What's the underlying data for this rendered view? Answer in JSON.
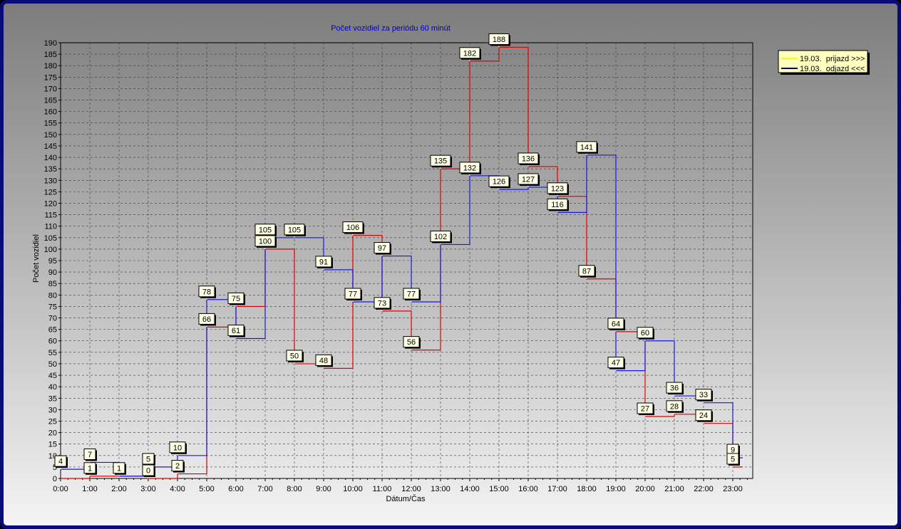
{
  "chart_data": {
    "type": "line",
    "title": "Počet vozidiel za periódu 60 minút",
    "xlabel": "Dátum/Čas",
    "ylabel": "Počet vozidiel",
    "categories": [
      "0:00",
      "1:00",
      "2:00",
      "3:00",
      "4:00",
      "5:00",
      "6:00",
      "7:00",
      "8:00",
      "9:00",
      "10:00",
      "11:00",
      "12:00",
      "13:00",
      "14:00",
      "15:00",
      "16:00",
      "17:00",
      "18:00",
      "19:00",
      "20:00",
      "21:00",
      "22:00",
      "23:00"
    ],
    "ylim": [
      0,
      190
    ],
    "ystep": 5,
    "grid": true,
    "legend_position": "top-right",
    "series": [
      {
        "name": "19.03.  prijazd >>>",
        "color": "#e00000",
        "legend_color": "#ffff00",
        "values": [
          0,
          1,
          1,
          0,
          2,
          66,
          75,
          100,
          50,
          48,
          106,
          73,
          56,
          135,
          182,
          188,
          136,
          123,
          87,
          64,
          27,
          28,
          24,
          5
        ]
      },
      {
        "name": "19.03.  odjazd <<<",
        "color": "#1818e0",
        "legend_color": "#000080",
        "values": [
          4,
          7,
          1,
          5,
          10,
          78,
          61,
          105,
          105,
          91,
          77,
          97,
          77,
          102,
          132,
          126,
          127,
          116,
          141,
          47,
          60,
          36,
          33,
          9
        ]
      }
    ],
    "data_labels": [
      {
        "x": 0,
        "value": 4
      },
      {
        "x": 1,
        "value": 7
      },
      {
        "x": 1,
        "value": 1
      },
      {
        "x": 2,
        "value": 1
      },
      {
        "x": 3,
        "value": 5
      },
      {
        "x": 3,
        "value": 0
      },
      {
        "x": 4,
        "value": 10
      },
      {
        "x": 4,
        "value": 2
      },
      {
        "x": 5,
        "value": 78
      },
      {
        "x": 5,
        "value": 66
      },
      {
        "x": 6,
        "value": 75
      },
      {
        "x": 6,
        "value": 61
      },
      {
        "x": 7,
        "value": 105
      },
      {
        "x": 7,
        "value": 100
      },
      {
        "x": 8,
        "value": 105
      },
      {
        "x": 8,
        "value": 50
      },
      {
        "x": 9,
        "value": 91
      },
      {
        "x": 9,
        "value": 48
      },
      {
        "x": 10,
        "value": 106
      },
      {
        "x": 10,
        "value": 77
      },
      {
        "x": 11,
        "value": 97
      },
      {
        "x": 11,
        "value": 73
      },
      {
        "x": 12,
        "value": 77
      },
      {
        "x": 12,
        "value": 56
      },
      {
        "x": 13,
        "value": 135
      },
      {
        "x": 13,
        "value": 102
      },
      {
        "x": 14,
        "value": 182
      },
      {
        "x": 14,
        "value": 132
      },
      {
        "x": 15,
        "value": 188
      },
      {
        "x": 15,
        "value": 126
      },
      {
        "x": 16,
        "value": 136
      },
      {
        "x": 16,
        "value": 127
      },
      {
        "x": 17,
        "value": 123
      },
      {
        "x": 17,
        "value": 116
      },
      {
        "x": 18,
        "value": 141
      },
      {
        "x": 18,
        "value": 87
      },
      {
        "x": 19,
        "value": 64
      },
      {
        "x": 19,
        "value": 47
      },
      {
        "x": 20,
        "value": 60
      },
      {
        "x": 20,
        "value": 27
      },
      {
        "x": 21,
        "value": 36
      },
      {
        "x": 21,
        "value": 28
      },
      {
        "x": 22,
        "value": 33
      },
      {
        "x": 22,
        "value": 24
      },
      {
        "x": 23,
        "value": 9
      },
      {
        "x": 23,
        "value": 5
      }
    ]
  }
}
